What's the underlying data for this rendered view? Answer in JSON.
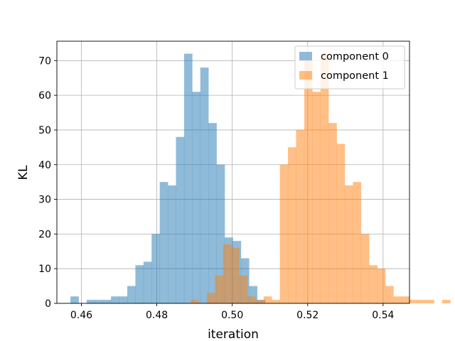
{
  "chart_data": {
    "type": "bar",
    "subtype": "histogram",
    "title": "",
    "xlabel": "iteration",
    "ylabel": "KL",
    "xlim": [
      0.4535,
      0.547
    ],
    "ylim": [
      0,
      75.6
    ],
    "xticks": [
      0.46,
      0.48,
      0.5,
      0.52,
      0.54
    ],
    "xtick_labels": [
      "0.46",
      "0.48",
      "0.50",
      "0.52",
      "0.54"
    ],
    "yticks": [
      0,
      10,
      20,
      30,
      40,
      50,
      60,
      70
    ],
    "ytick_labels": [
      "0",
      "10",
      "20",
      "30",
      "40",
      "50",
      "60",
      "70"
    ],
    "grid": true,
    "legend_position": "top-right",
    "series": [
      {
        "name": "component 0",
        "color": "#1f77b4",
        "alpha": 0.5,
        "bin_start": 0.4571,
        "bin_width": 0.002152,
        "values": [
          2,
          0,
          1,
          1,
          1,
          2,
          2,
          5,
          11,
          12,
          20,
          35,
          34,
          48,
          72,
          61,
          68,
          52,
          40,
          19,
          18,
          13,
          5,
          1
        ]
      },
      {
        "name": "component 1",
        "color": "#ff7f0e",
        "alpha": 0.5,
        "bin_start": 0.48895,
        "bin_width": 0.002152,
        "values": [
          1,
          0,
          3,
          8,
          17,
          16,
          8,
          2,
          1,
          2,
          1,
          40,
          45,
          50,
          70,
          61,
          72,
          52,
          46,
          34,
          35,
          20,
          11,
          10,
          5,
          2,
          2,
          1,
          1,
          1,
          0,
          1
        ]
      }
    ]
  }
}
